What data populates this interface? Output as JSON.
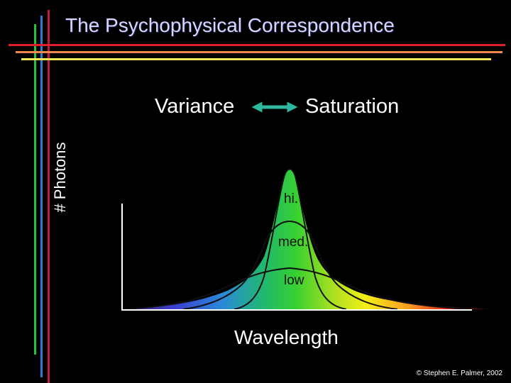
{
  "title": "The Psychophysical Correspondence",
  "concept_left": "Variance",
  "concept_right": "Saturation",
  "y_axis_label": "# Photons",
  "x_axis_label": "Wavelength",
  "curve_labels": {
    "high": "hi.",
    "medium": "med.",
    "low": "low"
  },
  "copyright": "© Stephen E. Palmer, 2002",
  "colors": {
    "background": "#000000",
    "title_text": "#d6d6ff",
    "arrow": "#2fb8a0",
    "vertical_stripes": [
      "#23c23a",
      "#2a7cd6",
      "#c01a3c"
    ],
    "horizontal_stripes": [
      "#e0202a",
      "#f08a4a",
      "#f2e65a"
    ]
  }
}
